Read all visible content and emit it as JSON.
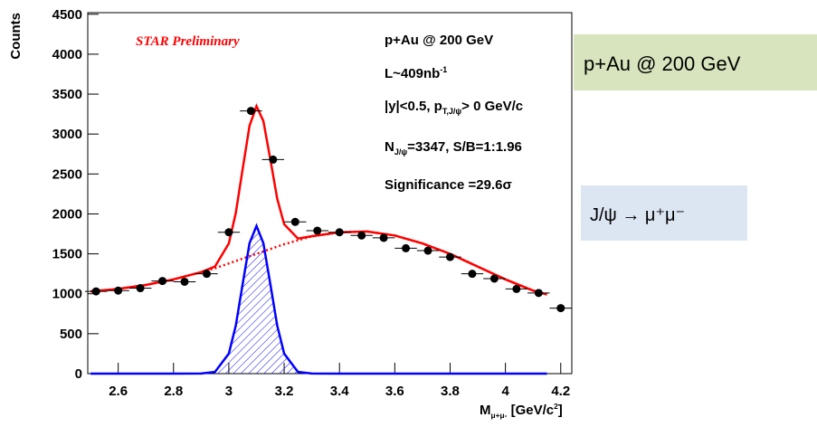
{
  "chart_data": {
    "type": "scatter",
    "ylabel": "Counts",
    "xlabel": [
      {
        "text": "M"
      },
      {
        "sub": "μ+μ-"
      },
      {
        "text": " [GeV/c"
      },
      {
        "sup": "2"
      },
      {
        "text": "]"
      }
    ],
    "annotations": [
      [
        {
          "text": "STAR Preliminary"
        }
      ],
      [
        {
          "text": "p+Au @ 200 GeV"
        }
      ],
      [
        {
          "text": "L~409nb"
        },
        {
          "sup": "-1"
        }
      ],
      [
        {
          "text": "|y|<0.5, p"
        },
        {
          "sub": "T,J/ψ"
        },
        {
          "text": "> 0 GeV/c"
        }
      ],
      [
        {
          "text": "N"
        },
        {
          "sub": "J/ψ"
        },
        {
          "text": "=3347, S/B=1:1.96"
        }
      ],
      [
        {
          "text": "Significance =29.6σ"
        }
      ]
    ],
    "boxes": [
      "p+Au @ 200 GeV",
      "J/ψ → μ⁺μ⁻"
    ],
    "xlim": [
      2.49,
      4.24
    ],
    "ylim": [
      0,
      4520
    ],
    "xticks": [
      2.6,
      2.8,
      3,
      3.2,
      3.4,
      3.6,
      3.8,
      4,
      4.2
    ],
    "yticks": [
      0,
      500,
      1000,
      1500,
      2000,
      2500,
      3000,
      3500,
      4000,
      4500
    ],
    "color": "#000000",
    "x": [
      2.52,
      2.6,
      2.68,
      2.76,
      2.84,
      2.92,
      3.0,
      3.08,
      3.16,
      3.24,
      3.32,
      3.4,
      3.48,
      3.56,
      3.64,
      3.72,
      3.8,
      3.88,
      3.96,
      4.04,
      4.12,
      4.2
    ],
    "xerr": 0.04,
    "values": [
      1030,
      1040,
      1070,
      1160,
      1150,
      1250,
      1770,
      3290,
      2680,
      1900,
      1790,
      1770,
      1730,
      1700,
      1570,
      1540,
      1460,
      1250,
      1190,
      1060,
      1010,
      820
    ],
    "curves": {
      "x": [
        2.5,
        2.6,
        2.7,
        2.8,
        2.9,
        2.95,
        3.0,
        3.025,
        3.05,
        3.075,
        3.1,
        3.125,
        3.15,
        3.175,
        3.2,
        3.25,
        3.3,
        3.4,
        3.5,
        3.6,
        3.7,
        3.8,
        3.9,
        4.0,
        4.1,
        4.15
      ],
      "series": [
        {
          "color": "#ff0000",
          "dashed": false,
          "hatched": false,
          "values": [
            1030,
            1060,
            1110,
            1180,
            1271,
            1341,
            1630,
            2011,
            2562,
            3103,
            3350,
            3163,
            2682,
            2191,
            1870,
            1691,
            1721,
            1770,
            1780,
            1730,
            1630,
            1500,
            1340,
            1180,
            1040,
            990
          ]
        },
        {
          "color": "#ff0000",
          "dashed": true,
          "hatched": false,
          "values": [
            1030,
            1060,
            1110,
            1180,
            1270,
            1320,
            1380,
            1410,
            1440,
            1470,
            1500,
            1530,
            1560,
            1590,
            1620,
            1670,
            1720,
            1770,
            1780,
            1730,
            1630,
            1500,
            1340,
            1180,
            1040,
            990
          ]
        },
        {
          "color": "#0000ff",
          "dashed": false,
          "hatched": true,
          "values": [
            0,
            0,
            0,
            0,
            1,
            21,
            250,
            601,
            1122,
            1633,
            1850,
            1633,
            1122,
            601,
            250,
            21,
            1,
            0,
            0,
            0,
            0,
            0,
            0,
            0,
            0,
            0
          ]
        }
      ]
    }
  }
}
